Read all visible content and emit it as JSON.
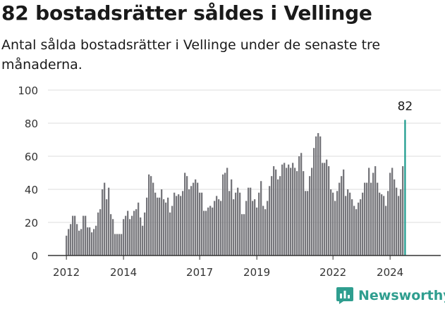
{
  "title": "82 bostadsrätter såldes i Vellinge",
  "subtitle": "Antal sålda bostadsrätter i Vellinge under de senaste tre månaderna.",
  "brand": {
    "name": "Newsworthy"
  },
  "colors": {
    "bar": "#76767b",
    "highlight": "#1a9a8c",
    "grid": "#dcdcdc",
    "axis": "#333333"
  },
  "chart_data": {
    "type": "bar",
    "title": "82 bostadsrätter såldes i Vellinge",
    "subtitle": "Antal sålda bostadsrätter i Vellinge under de senaste tre månaderna.",
    "xlabel": "",
    "ylabel": "",
    "ylim": [
      0,
      100
    ],
    "yticks": [
      0,
      20,
      40,
      60,
      80,
      100
    ],
    "xticks": [
      "2012",
      "2014",
      "2017",
      "2019",
      "2022",
      "2024"
    ],
    "xtick_index": [
      0,
      27,
      63,
      90,
      126,
      153
    ],
    "grid": true,
    "legend": "none",
    "start_month": "2011-11",
    "end_month": "2024-11",
    "highlight_label": "82",
    "series": [
      {
        "values": [
          12,
          16,
          19,
          24,
          24,
          19,
          15,
          16,
          24,
          24,
          17,
          17,
          14,
          16,
          18,
          26,
          28,
          40,
          44,
          34,
          41,
          25,
          22,
          13,
          13,
          13,
          13,
          22,
          24,
          27,
          22,
          24,
          27,
          28,
          32,
          23,
          18,
          26,
          35,
          49,
          48,
          44,
          38,
          35,
          35,
          40,
          34,
          32,
          35,
          26,
          30,
          38,
          36,
          37,
          36,
          39,
          50,
          48,
          40,
          42,
          44,
          46,
          44,
          38,
          38,
          27,
          27,
          29,
          30,
          29,
          33,
          36,
          34,
          33,
          49,
          50,
          53,
          39,
          46,
          34,
          38,
          41,
          38,
          25,
          25,
          33,
          41,
          41,
          33,
          34,
          29,
          38,
          45,
          30,
          28,
          33,
          42,
          48,
          54,
          52,
          46,
          48,
          55,
          56,
          53,
          55,
          53,
          56,
          53,
          51,
          60,
          62,
          51,
          39,
          39,
          48,
          53,
          65,
          72,
          74,
          72,
          56,
          56,
          58,
          54,
          40,
          38,
          33,
          39,
          44,
          48,
          52,
          36,
          40,
          38,
          34,
          30,
          28,
          32,
          34,
          38,
          44,
          44,
          53,
          44,
          50,
          54,
          44,
          38,
          37,
          36,
          30,
          39,
          50,
          53,
          46,
          41,
          36,
          40,
          54,
          82
        ]
      }
    ]
  }
}
